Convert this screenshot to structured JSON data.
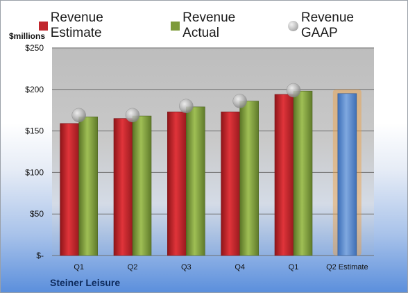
{
  "legend": {
    "estimate": "Revenue Estimate",
    "actual": "Revenue Actual",
    "gaap": "Revenue GAAP"
  },
  "unit_label": "$millions",
  "company": "Steiner Leisure",
  "colors": {
    "estimate": "#c1272d",
    "actual": "#7d9b3a",
    "gaap": "#b0b0b0",
    "future_estimate": "#5b8fd0",
    "highlight": "#f0a040"
  },
  "chart_data": {
    "type": "bar",
    "categories": [
      "Q1",
      "Q2",
      "Q3",
      "Q4",
      "Q1",
      "Q2 Estimate"
    ],
    "series": [
      {
        "name": "Revenue Estimate",
        "values": [
          159,
          165,
          173,
          173,
          194,
          195
        ]
      },
      {
        "name": "Revenue Actual",
        "values": [
          167,
          168,
          179,
          186,
          198,
          null
        ]
      },
      {
        "name": "Revenue GAAP",
        "values": [
          169,
          169,
          180,
          186,
          199,
          null
        ]
      }
    ],
    "ylabel": "$millions",
    "ylim": [
      0,
      250
    ],
    "yticks": [
      0,
      50,
      100,
      150,
      200,
      250
    ],
    "ytick_labels": [
      "$-",
      "$50",
      "$100",
      "$150",
      "$200",
      "$250"
    ],
    "grid": true,
    "legend_position": "top"
  }
}
